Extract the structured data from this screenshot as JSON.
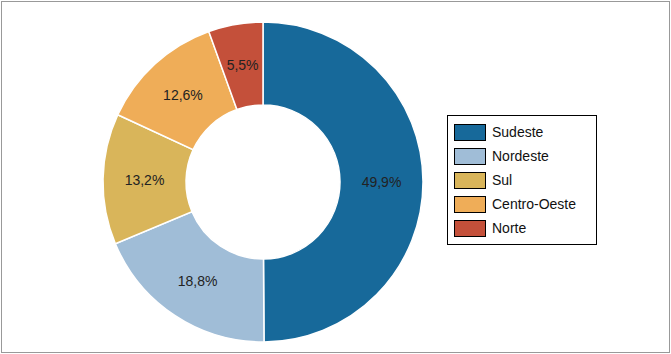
{
  "chart_data": {
    "type": "pie",
    "categories": [
      "Sudeste",
      "Nordeste",
      "Sul",
      "Centro-Oeste",
      "Norte"
    ],
    "values": [
      49.9,
      18.8,
      13.2,
      12.6,
      5.5
    ],
    "value_labels": [
      "49,9%",
      "18,8%",
      "13,2%",
      "12,6%",
      "5,5%"
    ],
    "colors": [
      "#17699a",
      "#a0bdd7",
      "#d9b55a",
      "#efad58",
      "#c4503a"
    ],
    "data_labels": true,
    "legend": "right"
  }
}
